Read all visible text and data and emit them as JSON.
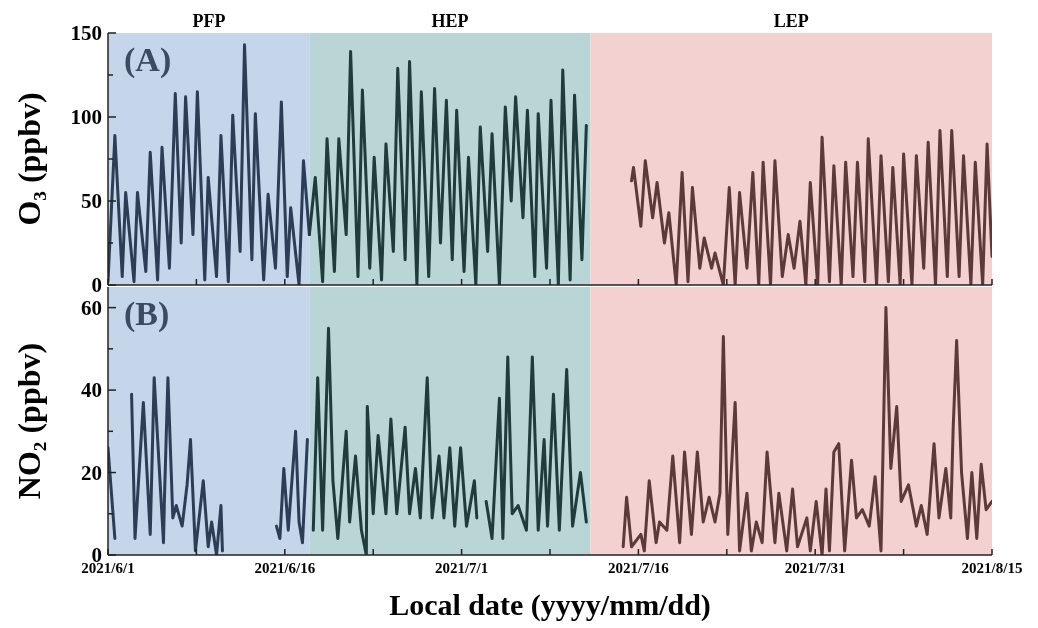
{
  "chart_data": [
    {
      "type": "line",
      "ylabel": "O₃ (ppbv)",
      "annotations": [
        "(A)"
      ],
      "tick_labels": "y",
      "xlim": [
        "2021-06-01",
        "2021-08-15"
      ],
      "xticks": [
        {
          "value": "2021-06-01",
          "label": null
        },
        {
          "value": "2021-06-08T12:00",
          "label": null
        },
        {
          "value": "2021-06-16",
          "label": null
        },
        {
          "value": "2021-06-23T12:00",
          "label": null
        },
        {
          "value": "2021-07-01",
          "label": null
        },
        {
          "value": "2021-07-08T12:00",
          "label": null
        },
        {
          "value": "2021-07-16",
          "label": null
        },
        {
          "value": "2021-07-23T12:00",
          "label": null
        },
        {
          "value": "2021-07-31",
          "label": null
        },
        {
          "value": "2021-08-07T12:00",
          "label": null
        },
        {
          "value": "2021-08-15",
          "label": null
        }
      ],
      "ylim": [
        0,
        150
      ],
      "yticks": [
        0,
        {
          "value": 25,
          "label": null
        },
        50,
        {
          "value": 75,
          "label": null
        },
        100,
        {
          "value": 125,
          "label": null
        },
        150
      ],
      "bands": [
        {
          "axis": "x",
          "from": "2021-06-01",
          "to": "2021-06-18T03:00",
          "label": "PFP",
          "color": "#c5d6ea"
        },
        {
          "axis": "x",
          "from": "2021-06-18T03:00",
          "to": "2021-07-11T22:00",
          "label": "HEP",
          "color": "#b9d5d5"
        },
        {
          "axis": "x",
          "from": "2021-07-11T22:00",
          "to": "2021-08-15",
          "label": "LEP",
          "color": "#f3d1d1"
        }
      ],
      "series": [
        {
          "color": "#2c3e55",
          "x": [
            "2021-06-01T00:00",
            "2021-06-01T14:00",
            "2021-06-02T05:00",
            "2021-06-02T12:00",
            "2021-06-03T05:00",
            "2021-06-03T12:00",
            "2021-06-04T05:00",
            "2021-06-04T14:00",
            "2021-06-05T05:00",
            "2021-06-05T14:00",
            "2021-06-06T05:00",
            "2021-06-06T17:00",
            "2021-06-07T05:00",
            "2021-06-07T14:00",
            "2021-06-08T05:00",
            "2021-06-08T14:00",
            "2021-06-09T05:00",
            "2021-06-09T12:00",
            "2021-06-10T05:00",
            "2021-06-10T14:00",
            "2021-06-11T05:00",
            "2021-06-11T14:00",
            "2021-06-12T05:00",
            "2021-06-12T14:00",
            "2021-06-13T05:00",
            "2021-06-13T12:00",
            "2021-06-14T05:00",
            "2021-06-14T14:00",
            "2021-06-15T05:00",
            "2021-06-15T17:00",
            "2021-06-16T05:00",
            "2021-06-16T12:00",
            "2021-06-17T05:00",
            "2021-06-17T14:00",
            "2021-06-18T02:00"
          ],
          "values": [
            2,
            89,
            5,
            55,
            2,
            55,
            8,
            79,
            3,
            82,
            10,
            114,
            25,
            112,
            30,
            115,
            3,
            64,
            5,
            89,
            2,
            101,
            20,
            143,
            15,
            102,
            3,
            54,
            10,
            109,
            5,
            46,
            0,
            74,
            30
          ]
        },
        {
          "color": "#1f3b3b",
          "x": [
            "2021-06-18T02:00",
            "2021-06-18T14:00",
            "2021-06-19T05:00",
            "2021-06-19T14:00",
            "2021-06-20T05:00",
            "2021-06-20T14:00",
            "2021-06-21T05:00",
            "2021-06-21T14:00",
            "2021-06-22T05:00",
            "2021-06-22T14:00",
            "2021-06-23T05:00",
            "2021-06-23T14:00",
            "2021-06-24T05:00",
            "2021-06-24T14:00",
            "2021-06-25T05:00",
            "2021-06-25T14:00",
            "2021-06-26T05:00",
            "2021-06-26T14:00",
            "2021-06-27T05:00",
            "2021-06-27T14:00",
            "2021-06-28T05:00",
            "2021-06-28T17:00",
            "2021-06-29T05:00",
            "2021-06-29T17:00",
            "2021-06-30T05:00",
            "2021-06-30T14:00",
            "2021-07-01T05:00",
            "2021-07-01T14:00",
            "2021-07-02T05:00",
            "2021-07-02T14:00",
            "2021-07-03T05:00",
            "2021-07-03T14:00",
            "2021-07-04T05:00",
            "2021-07-04T17:00",
            "2021-07-05T05:00",
            "2021-07-05T14:00",
            "2021-07-06T05:00",
            "2021-07-06T14:00",
            "2021-07-07T05:00",
            "2021-07-07T12:00",
            "2021-07-08T05:00",
            "2021-07-08T14:00",
            "2021-07-09T05:00",
            "2021-07-09T14:00",
            "2021-07-10T05:00",
            "2021-07-10T14:00",
            "2021-07-11T05:00",
            "2021-07-11T14:00"
          ],
          "values": [
            30,
            64,
            2,
            87,
            8,
            87,
            30,
            139,
            5,
            116,
            10,
            76,
            3,
            84,
            20,
            129,
            15,
            133,
            0,
            115,
            5,
            117,
            25,
            110,
            15,
            104,
            8,
            76,
            0,
            94,
            20,
            90,
            0,
            106,
            50,
            112,
            40,
            104,
            5,
            102,
            10,
            110,
            0,
            128,
            3,
            113,
            15,
            95
          ]
        },
        {
          "color": "#5b3a39",
          "x": [
            "2021-07-15T10:00",
            "2021-07-15T14:00",
            "2021-07-16T05:00",
            "2021-07-16T14:00",
            "2021-07-17T05:00",
            "2021-07-17T14:00",
            "2021-07-18T05:00",
            "2021-07-18T14:00",
            "2021-07-19T05:00",
            "2021-07-19T17:00",
            "2021-07-20T05:00",
            "2021-07-20T14:00",
            "2021-07-21T05:00",
            "2021-07-21T14:00",
            "2021-07-22T05:00",
            "2021-07-22T12:00",
            "2021-07-23T05:00",
            "2021-07-23T17:00",
            "2021-07-24T05:00",
            "2021-07-24T14:00",
            "2021-07-25T05:00",
            "2021-07-25T17:00",
            "2021-07-26T05:00",
            "2021-07-26T14:00",
            "2021-07-27T05:00",
            "2021-07-27T14:00",
            "2021-07-28T05:00",
            "2021-07-28T17:00",
            "2021-07-29T05:00",
            "2021-07-29T17:00",
            "2021-07-30T05:00",
            "2021-07-30T14:00",
            "2021-07-31T05:00",
            "2021-07-31T14:00",
            "2021-08-01T05:00",
            "2021-08-01T14:00",
            "2021-08-02T05:00",
            "2021-08-02T14:00",
            "2021-08-03T05:00",
            "2021-08-03T14:00",
            "2021-08-04T05:00",
            "2021-08-04T12:00",
            "2021-08-05T05:00",
            "2021-08-05T14:00",
            "2021-08-06T05:00",
            "2021-08-06T14:00",
            "2021-08-07T05:00",
            "2021-08-07T12:00",
            "2021-08-08T05:00",
            "2021-08-08T14:00",
            "2021-08-09T05:00",
            "2021-08-09T14:00",
            "2021-08-10T05:00",
            "2021-08-10T14:00",
            "2021-08-11T05:00",
            "2021-08-11T14:00",
            "2021-08-12T05:00",
            "2021-08-12T14:00",
            "2021-08-13T05:00",
            "2021-08-13T14:00",
            "2021-08-14T05:00",
            "2021-08-14T14:00",
            "2021-08-15T00:00"
          ],
          "values": [
            62,
            70,
            35,
            74,
            40,
            61,
            25,
            43,
            0,
            67,
            2,
            58,
            10,
            28,
            10,
            19,
            0,
            58,
            0,
            55,
            10,
            67,
            0,
            73,
            0,
            74,
            5,
            30,
            10,
            38,
            0,
            61,
            0,
            88,
            2,
            71,
            0,
            73,
            5,
            73,
            2,
            87,
            0,
            77,
            2,
            70,
            0,
            78,
            0,
            77,
            10,
            85,
            0,
            92,
            5,
            92,
            5,
            77,
            0,
            73,
            0,
            84,
            17
          ]
        }
      ]
    },
    {
      "type": "line",
      "ylabel": "NO₂ (ppbv)",
      "xlabel": "Local date (yyyy/mm/dd)",
      "annotations": [
        "(B)"
      ],
      "xlim": [
        "2021-06-01",
        "2021-08-15"
      ],
      "xticks": [
        {
          "value": "2021-06-01",
          "label": "2021/6/1"
        },
        {
          "value": "2021-06-08T12:00",
          "label": null
        },
        {
          "value": "2021-06-16",
          "label": "2021/6/16"
        },
        {
          "value": "2021-06-23T12:00",
          "label": null
        },
        {
          "value": "2021-07-01",
          "label": "2021/7/1"
        },
        {
          "value": "2021-07-08T12:00",
          "label": null
        },
        {
          "value": "2021-07-16",
          "label": "2021/7/16"
        },
        {
          "value": "2021-07-23T12:00",
          "label": null
        },
        {
          "value": "2021-07-31",
          "label": "2021/7/31"
        },
        {
          "value": "2021-08-07T12:00",
          "label": null
        },
        {
          "value": "2021-08-15",
          "label": "2021/8/15"
        }
      ],
      "ylim": [
        0,
        65
      ],
      "yticks": [
        0,
        {
          "value": 10,
          "label": null
        },
        20,
        {
          "value": 30,
          "label": null
        },
        40,
        {
          "value": 50,
          "label": null
        },
        60
      ],
      "bands": [
        {
          "axis": "x",
          "from": "2021-06-01",
          "to": "2021-06-18T03:00",
          "color": "#c5d6ea"
        },
        {
          "axis": "x",
          "from": "2021-06-18T03:00",
          "to": "2021-07-11T22:00",
          "color": "#b9d5d5"
        },
        {
          "axis": "x",
          "from": "2021-07-11T22:00",
          "to": "2021-08-15",
          "color": "#f3d1d1"
        }
      ],
      "series": [
        {
          "color": "#2c3e55",
          "x": [
            "2021-06-01T00:00",
            "2021-06-01T14:00",
            "2021-06-02T00:00",
            "2021-06-03T00:00",
            "2021-06-03T07:00",
            "2021-06-04T00:00",
            "2021-06-04T14:00",
            "2021-06-04T22:00",
            "2021-06-05T17:00",
            "2021-06-05T19:00",
            "2021-06-06T02:00",
            "2021-06-06T12:00",
            "2021-06-06T19:00",
            "2021-06-07T07:00",
            "2021-06-07T17:00",
            "2021-06-08T00:00",
            "2021-06-08T10:00",
            "2021-06-09T02:00",
            "2021-06-09T12:00",
            "2021-06-09T19:00",
            "2021-06-10T05:00",
            "2021-06-10T14:00",
            "2021-06-10T17:00",
            "2021-06-12T00:00",
            "2021-06-15T07:00",
            "2021-06-15T14:00",
            "2021-06-15T22:00",
            "2021-06-16T07:00",
            "2021-06-16T22:00",
            "2021-06-17T05:00",
            "2021-06-17T12:00",
            "2021-06-17T22:00"
          ],
          "values": [
            26,
            4,
            null,
            39,
            4,
            37,
            5,
            43,
            3,
            14,
            43,
            9,
            12,
            7,
            17,
            28,
            1,
            18,
            2,
            8,
            0,
            12,
            1,
            null,
            7,
            4,
            21,
            6,
            30,
            8,
            3,
            28
          ]
        },
        {
          "color": "#1f3b3b",
          "x": [
            "2021-06-18T10:00",
            "2021-06-18T19:00",
            "2021-06-19T05:00",
            "2021-06-19T17:00",
            "2021-06-20T02:00",
            "2021-06-20T12:00",
            "2021-06-21T05:00",
            "2021-06-21T12:00",
            "2021-06-22T00:00",
            "2021-06-22T12:00",
            "2021-06-22T22:00",
            "2021-06-23T00:00",
            "2021-06-23T12:00",
            "2021-06-23T22:00",
            "2021-06-24T14:00",
            "2021-06-25T00:00",
            "2021-06-25T12:00",
            "2021-06-26T05:00",
            "2021-06-26T14:00",
            "2021-06-27T02:00",
            "2021-06-27T12:00",
            "2021-06-28T02:00",
            "2021-06-28T12:00",
            "2021-06-29T02:00",
            "2021-06-29T12:00",
            "2021-06-30T00:00",
            "2021-06-30T10:00",
            "2021-06-30T22:00",
            "2021-07-01T10:00",
            "2021-07-02T02:00",
            "2021-07-02T07:00",
            "2021-07-02T12:00",
            "2021-07-03T02:00",
            "2021-07-03T14:00",
            "2021-07-04T05:00",
            "2021-07-04T12:00",
            "2021-07-04T22:00",
            "2021-07-05T07:00",
            "2021-07-05T19:00",
            "2021-07-06T12:00",
            "2021-07-07T00:00",
            "2021-07-07T12:00",
            "2021-07-08T00:00",
            "2021-07-08T07:00",
            "2021-07-08T19:00",
            "2021-07-09T07:00",
            "2021-07-09T22:00",
            "2021-07-10T10:00",
            "2021-07-11T02:00",
            "2021-07-11T14:00"
          ],
          "values": [
            6,
            43,
            6,
            55,
            18,
            4,
            30,
            8,
            24,
            6,
            0,
            36,
            10,
            29,
            10,
            33,
            10,
            31,
            10,
            21,
            9,
            43,
            9,
            24,
            9,
            26,
            7,
            26,
            7,
            18,
            9,
            null,
            13,
            4,
            38,
            4,
            48,
            10,
            12,
            6,
            48,
            6,
            28,
            7,
            39,
            6,
            45,
            7,
            20,
            8
          ]
        },
        {
          "color": "#5b3a39",
          "x": [
            "2021-07-14T17:00",
            "2021-07-15T00:00",
            "2021-07-15T10:00",
            "2021-07-16T05:00",
            "2021-07-16T12:00",
            "2021-07-16T22:00",
            "2021-07-17T12:00",
            "2021-07-17T19:00",
            "2021-07-18T10:00",
            "2021-07-18T22:00",
            "2021-07-19T12:00",
            "2021-07-19T22:00",
            "2021-07-20T12:00",
            "2021-07-21T00:00",
            "2021-07-21T12:00",
            "2021-07-22T00:00",
            "2021-07-22T12:00",
            "2021-07-22T22:00",
            "2021-07-23T05:00",
            "2021-07-23T14:00",
            "2021-07-24T05:00",
            "2021-07-24T14:00",
            "2021-07-25T05:00",
            "2021-07-25T14:00",
            "2021-07-26T00:00",
            "2021-07-26T12:00",
            "2021-07-26T22:00",
            "2021-07-27T14:00",
            "2021-07-27T22:00",
            "2021-07-28T14:00",
            "2021-07-29T02:00",
            "2021-07-29T12:00",
            "2021-07-30T07:00",
            "2021-07-30T14:00",
            "2021-07-31T02:00",
            "2021-07-31T14:00",
            "2021-07-31T22:00",
            "2021-08-01T05:00",
            "2021-08-01T14:00",
            "2021-08-02T00:00",
            "2021-08-02T12:00",
            "2021-08-03T02:00",
            "2021-08-03T12:00",
            "2021-08-04T00:00",
            "2021-08-04T14:00",
            "2021-08-05T02:00",
            "2021-08-05T14:00",
            "2021-08-06T00:00",
            "2021-08-06T10:00",
            "2021-08-06T22:00",
            "2021-08-07T07:00",
            "2021-08-07T22:00",
            "2021-08-08T14:00",
            "2021-08-09T00:00",
            "2021-08-09T12:00",
            "2021-08-10T02:00",
            "2021-08-10T12:00",
            "2021-08-11T02:00",
            "2021-08-11T12:00",
            "2021-08-11T17:00",
            "2021-08-12T00:00",
            "2021-08-12T10:00",
            "2021-08-12T22:00",
            "2021-08-13T07:00",
            "2021-08-13T17:00",
            "2021-08-14T02:00",
            "2021-08-14T12:00",
            "2021-08-15T00:00"
          ],
          "values": [
            2,
            14,
            2,
            5,
            1,
            18,
            3,
            8,
            6,
            24,
            3,
            25,
            5,
            25,
            8,
            14,
            8,
            15,
            53,
            5,
            37,
            1,
            15,
            1,
            8,
            3,
            25,
            3,
            15,
            1,
            16,
            2,
            9,
            1,
            13,
            0,
            16,
            1,
            25,
            27,
            1,
            23,
            9,
            11,
            7,
            19,
            1,
            60,
            21,
            36,
            13,
            17,
            7,
            12,
            5,
            27,
            9,
            21,
            9,
            31,
            52,
            20,
            4,
            20,
            4,
            22,
            11,
            13
          ]
        }
      ]
    }
  ]
}
